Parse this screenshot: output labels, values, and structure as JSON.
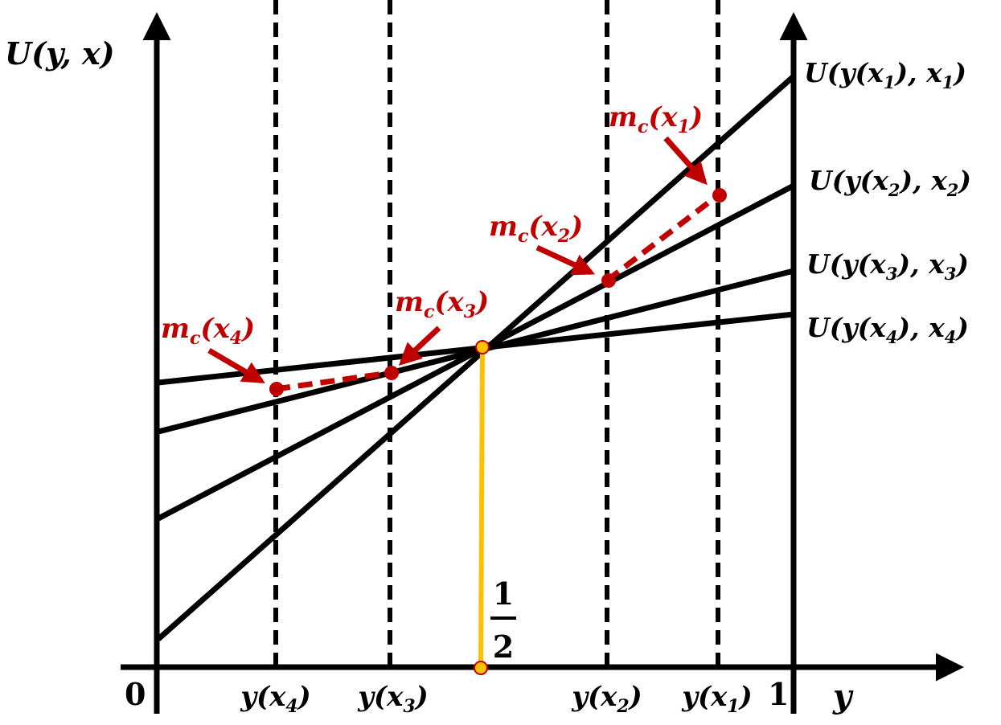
{
  "axes": {
    "y_axis_label": "U(y, x)",
    "x_axis_label": "y",
    "origin_label": "0",
    "one_label": "1",
    "half_numerator": "1",
    "half_denominator": "2"
  },
  "x_ticks": [
    {
      "id": "x4",
      "label": "y(x",
      "sub": "4",
      "close": ")"
    },
    {
      "id": "x3",
      "label": "y(x",
      "sub": "3",
      "close": ")"
    },
    {
      "id": "x2",
      "label": "y(x",
      "sub": "2",
      "close": ")"
    },
    {
      "id": "x1",
      "label": "y(x",
      "sub": "1",
      "close": ")"
    }
  ],
  "lines": [
    {
      "id": "1",
      "prefix": "U(y(x",
      "sub1": "1",
      "mid": "), x",
      "sub2": "1",
      "close": ")"
    },
    {
      "id": "2",
      "prefix": "U(y(x",
      "sub1": "2",
      "mid": "), x",
      "sub2": "2",
      "close": ")"
    },
    {
      "id": "3",
      "prefix": "U(y(x",
      "sub1": "3",
      "mid": "), x",
      "sub2": "3",
      "close": ")"
    },
    {
      "id": "4",
      "prefix": "U(y(x",
      "sub1": "4",
      "mid": "), x",
      "sub2": "4",
      "close": ")"
    }
  ],
  "points": [
    {
      "id": "1",
      "name": "m",
      "sub": "c",
      "arg": "(x",
      "argsub": "1",
      "close": ")"
    },
    {
      "id": "2",
      "name": "m",
      "sub": "c",
      "arg": "(x",
      "argsub": "2",
      "close": ")"
    },
    {
      "id": "3",
      "name": "m",
      "sub": "c",
      "arg": "(x",
      "argsub": "3",
      "close": ")"
    },
    {
      "id": "4",
      "name": "m",
      "sub": "c",
      "arg": "(x",
      "argsub": "4",
      "close": ")"
    }
  ],
  "colors": {
    "axis": "#000000",
    "line": "#000000",
    "highlight": "#c00000",
    "half_marker": "#ffc000"
  }
}
